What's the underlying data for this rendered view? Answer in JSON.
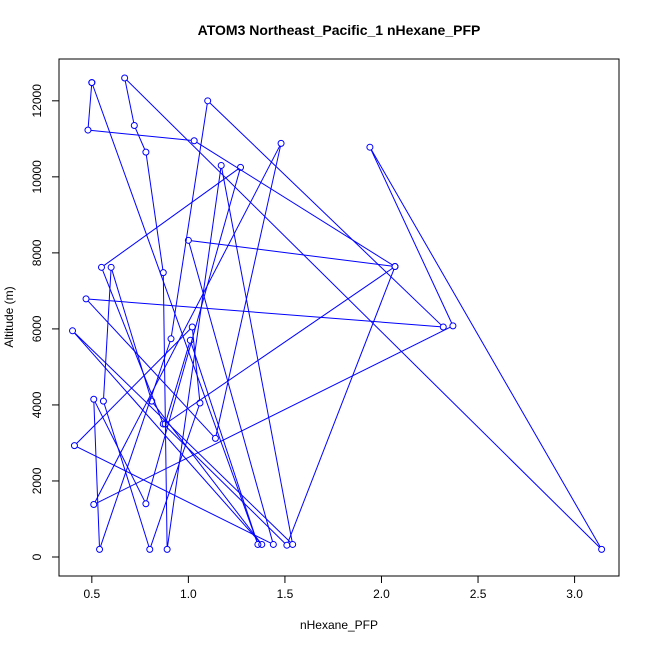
{
  "chart_data": {
    "type": "line",
    "title": "ATOM3 Northeast_Pacific_1 nHexane_PFP",
    "xlabel": "nHexane_PFP",
    "ylabel": "Altitude (m)",
    "xlim": [
      0.33,
      3.23
    ],
    "ylim": [
      -500,
      13100
    ],
    "x_ticks": [
      0.5,
      1.0,
      1.5,
      2.0,
      2.5,
      3.0
    ],
    "x_tick_labels": [
      "0.5",
      "1.0",
      "1.5",
      "2.0",
      "2.5",
      "3.0"
    ],
    "y_ticks": [
      0,
      2000,
      4000,
      6000,
      8000,
      10000,
      12000
    ],
    "y_tick_labels": [
      "0",
      "2000",
      "4000",
      "6000",
      "8000",
      "10000",
      "12000"
    ],
    "grid": false,
    "legend": "none",
    "series_color": "#0000ff",
    "series": [
      {
        "x": [
          0.5,
          0.48,
          1.03,
          2.07,
          1.51,
          0.87,
          0.55,
          1.27,
          0.78,
          0.51,
          0.54,
          0.91,
          1.1,
          2.32,
          0.47,
          1.14,
          1.48,
          0.51,
          2.37,
          1.94,
          3.14,
          0.67,
          0.72,
          0.78,
          0.87,
          0.89,
          1.17,
          1.54,
          0.4,
          1.38,
          0.81,
          0.6,
          0.56,
          0.8,
          1.06,
          1.02,
          0.41,
          1.44,
          1.0,
          2.07,
          0.88,
          1.01,
          1.36,
          0.5
        ],
        "y": [
          12480,
          11230,
          10950,
          7640,
          310,
          3500,
          7620,
          10250,
          1400,
          4150,
          200,
          5740,
          12000,
          6050,
          6790,
          3120,
          10880,
          1380,
          6080,
          10780,
          200,
          12600,
          11350,
          10650,
          7480,
          200,
          10300,
          330,
          5950,
          330,
          4100,
          7620,
          4100,
          200,
          4050,
          6050,
          2930,
          330,
          8330,
          7640,
          3500,
          5700,
          330,
          12480
        ]
      }
    ]
  }
}
